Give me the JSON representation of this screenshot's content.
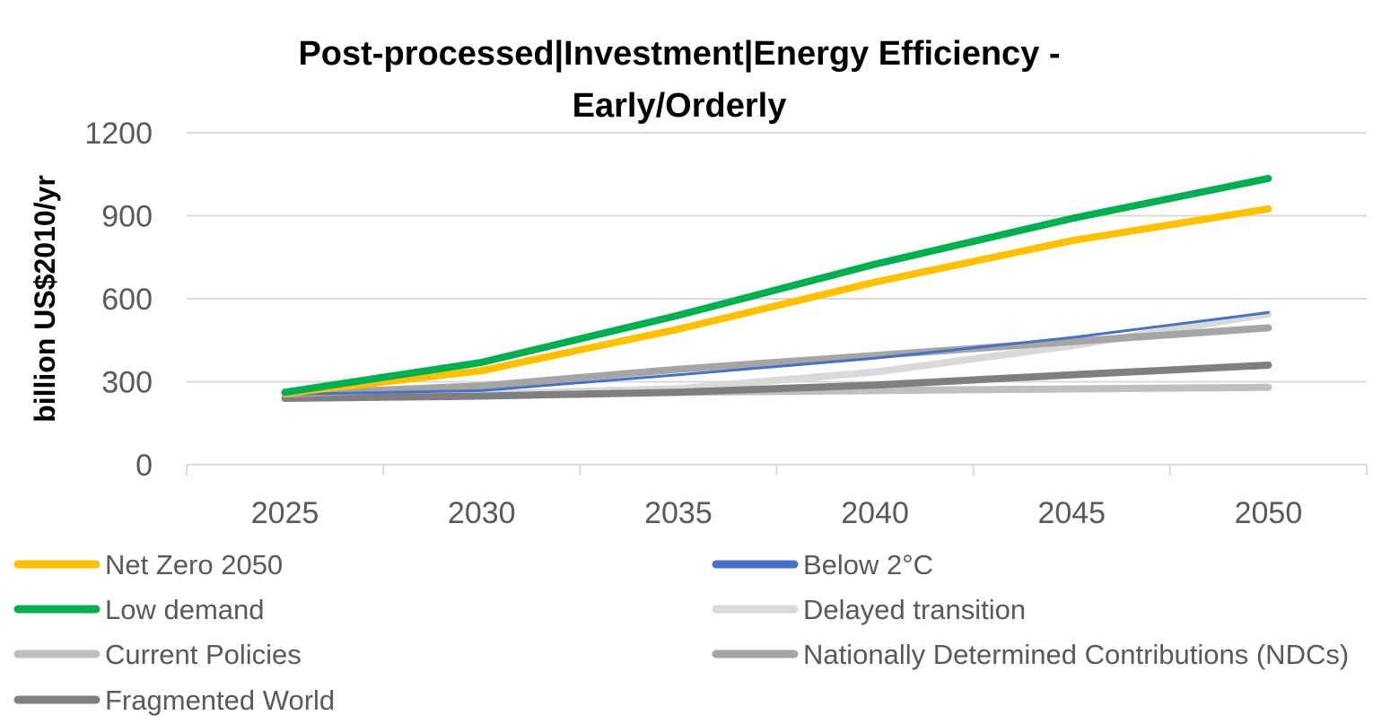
{
  "chart_data": {
    "type": "line",
    "title_lines": [
      "Post-processed|Investment|Energy Efficiency -",
      "Early/Orderly"
    ],
    "ylabel": "billion US$2010/yr",
    "xlabel": "",
    "x": [
      "2025",
      "2030",
      "2035",
      "2040",
      "2045",
      "2050"
    ],
    "y_ticks": [
      "0",
      "300",
      "600",
      "900",
      "1200"
    ],
    "ylim": [
      0,
      1200
    ],
    "grid": true,
    "legend_position": "bottom",
    "series": [
      {
        "name": "Net Zero 2050",
        "color": "#FFC000",
        "values": [
          258,
          340,
          490,
          660,
          810,
          925
        ]
      },
      {
        "name": "Below 2°C",
        "color": "#4472C4",
        "values": [
          255,
          268,
          325,
          385,
          460,
          550
        ]
      },
      {
        "name": "Low demand",
        "color": "#00B050",
        "values": [
          262,
          370,
          540,
          725,
          890,
          1035
        ]
      },
      {
        "name": "Delayed transition",
        "color": "#D9D9D9",
        "values": [
          250,
          255,
          275,
          335,
          430,
          545
        ]
      },
      {
        "name": "Current Policies",
        "color": "#BFBFBF",
        "values": [
          248,
          255,
          262,
          268,
          274,
          280
        ]
      },
      {
        "name": "Nationally Determined Contributions (NDCs)",
        "color": "#A5A5A5",
        "values": [
          255,
          285,
          345,
          395,
          445,
          495
        ]
      },
      {
        "name": "Fragmented World",
        "color": "#7F7F7F",
        "values": [
          240,
          248,
          262,
          288,
          325,
          360
        ]
      }
    ]
  }
}
